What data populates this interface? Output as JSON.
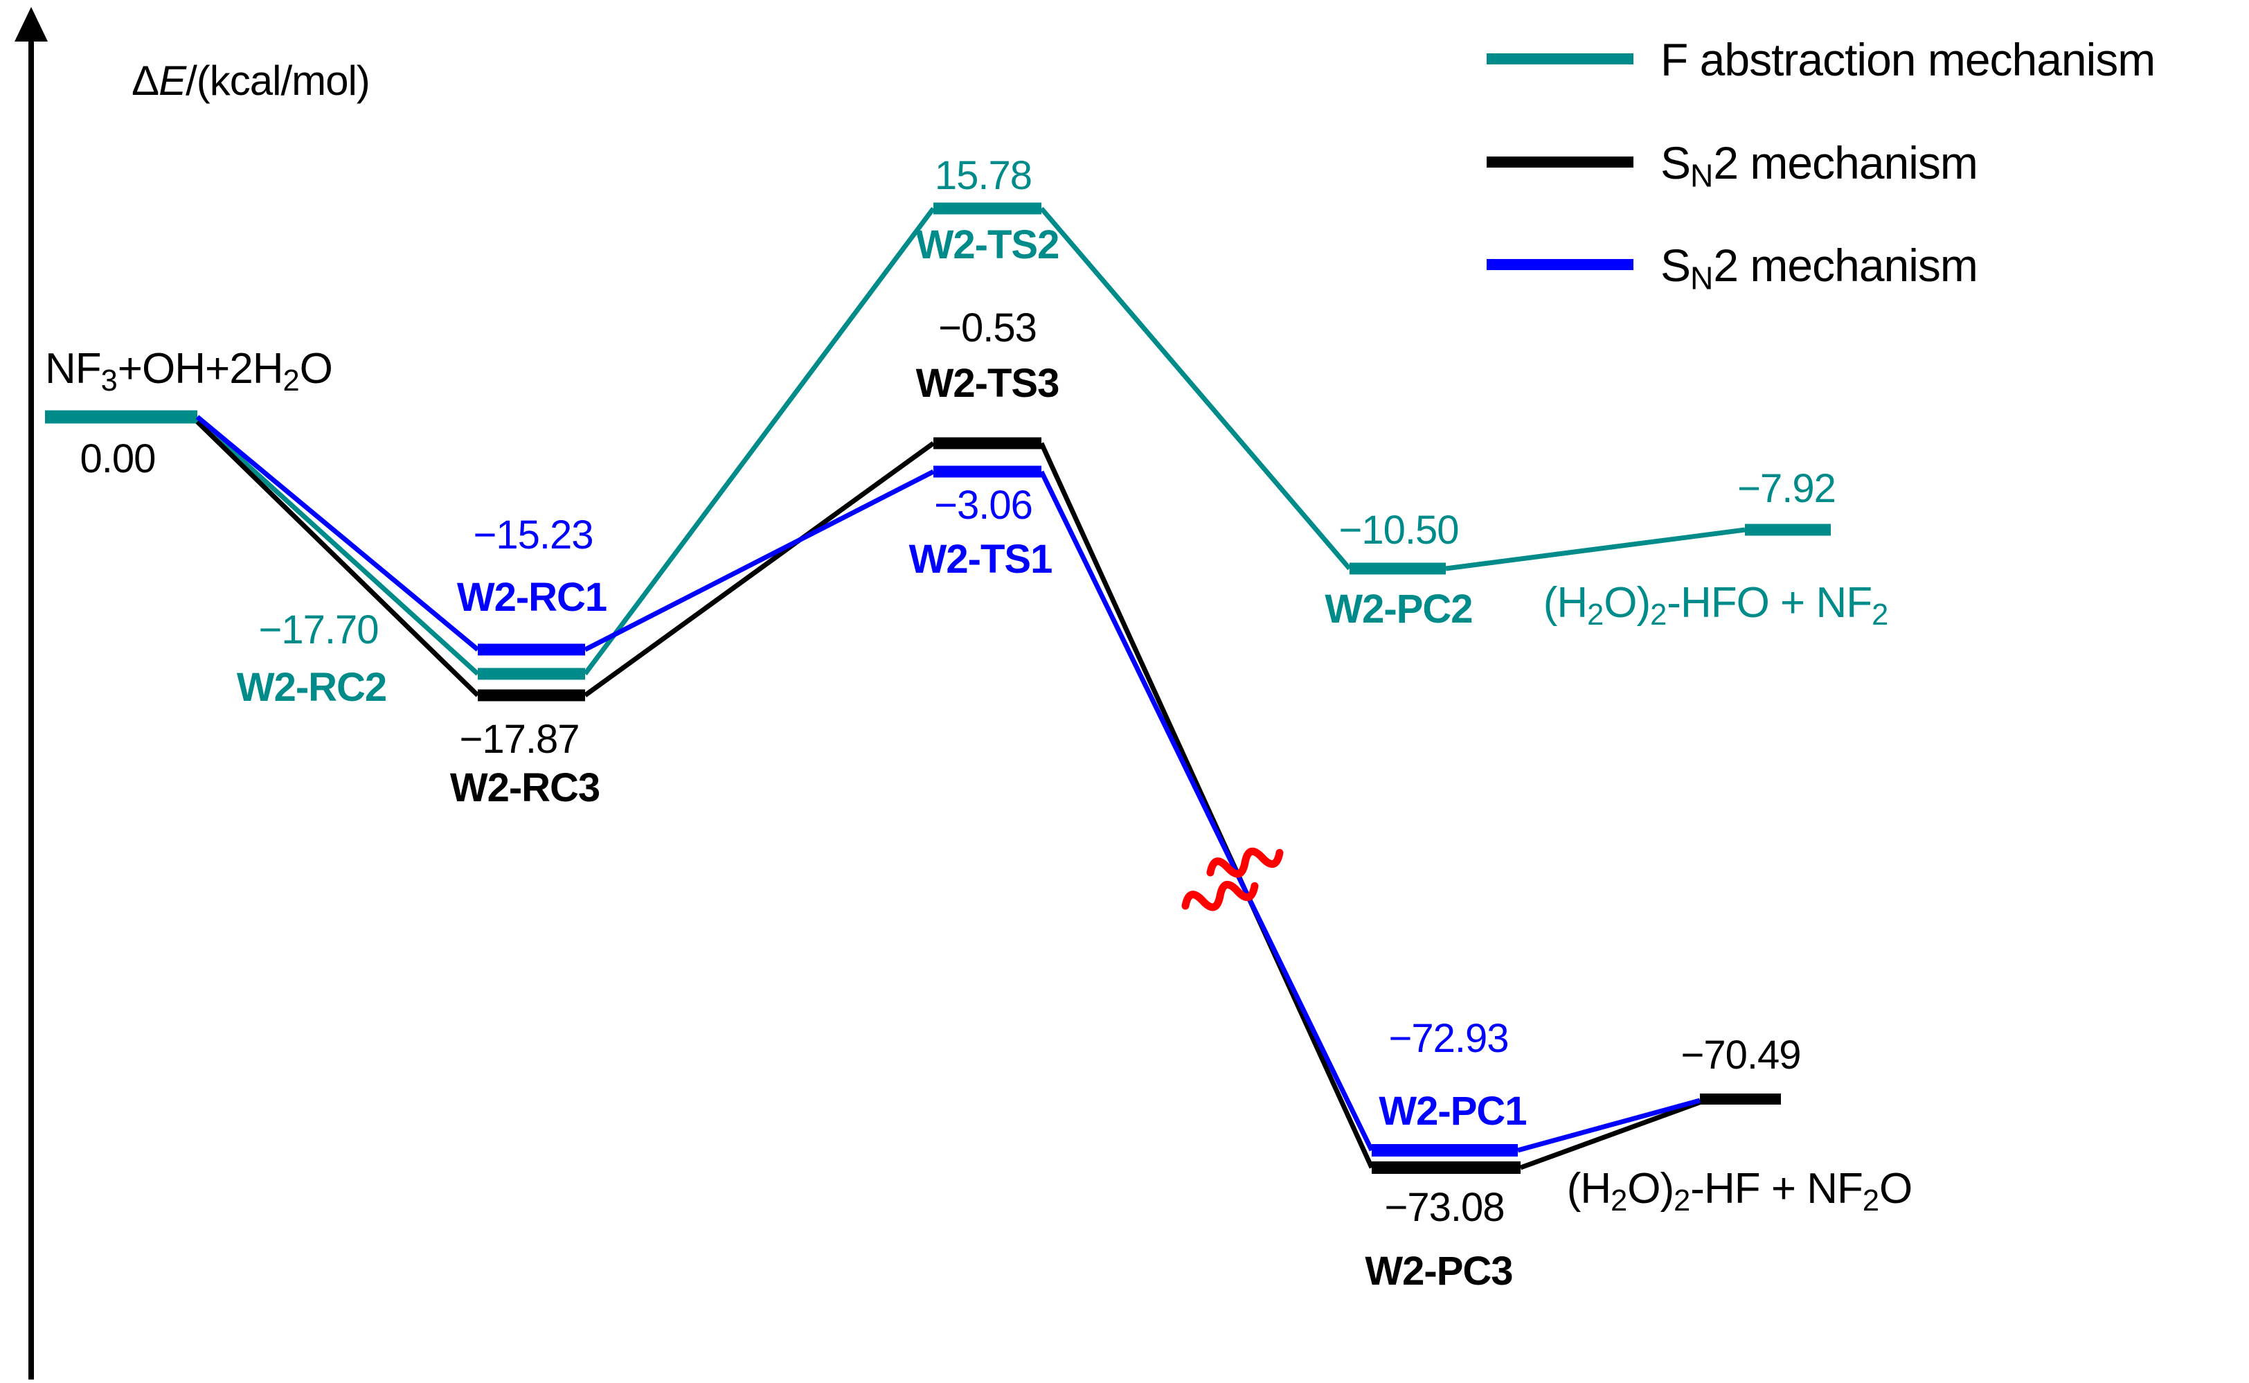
{
  "figure": {
    "axis_label": {
      "text": "ΔE/(kcal/mol)",
      "segments": [
        {
          "t": "Δ"
        },
        {
          "t": "E",
          "i": 1
        },
        {
          "t": "/(kcal/mol)"
        }
      ]
    },
    "legend": {
      "items": [
        {
          "label": "F abstraction mechanism",
          "color": "#008B8B",
          "segments": [
            {
              "t": "F abstraction mechanism"
            }
          ]
        },
        {
          "label": "SN2 mechanism",
          "color": "#000000",
          "segments": [
            {
              "t": "S"
            },
            {
              "t": "N",
              "s": 1
            },
            {
              "t": "2 mechanism"
            }
          ]
        },
        {
          "label": "SN2 mechanism",
          "color": "#0000FF",
          "segments": [
            {
              "t": "S"
            },
            {
              "t": "N",
              "s": 1
            },
            {
              "t": "2 mechanism"
            }
          ]
        }
      ]
    },
    "levels": {
      "start": {
        "energy": "0.00",
        "label_segments": [
          {
            "t": "NF"
          },
          {
            "t": "3",
            "s": 1
          },
          {
            "t": "+OH+2H"
          },
          {
            "t": "2",
            "s": 1
          },
          {
            "t": "O"
          }
        ]
      },
      "rc1": {
        "energy": "−15.23",
        "name": "W2-RC1"
      },
      "rc2": {
        "energy": "−17.70",
        "name": "W2-RC2"
      },
      "rc3": {
        "energy": "−17.87",
        "name": "W2-RC3"
      },
      "ts2": {
        "energy": "15.78",
        "name": "W2-TS2"
      },
      "ts3": {
        "energy": "−0.53",
        "name": "W2-TS3"
      },
      "ts1": {
        "energy": "−3.06",
        "name": "W2-TS1"
      },
      "pc2": {
        "energy": "−10.50",
        "name": "W2-PC2"
      },
      "pc1": {
        "energy": "−72.93",
        "name": "W2-PC1"
      },
      "pc3": {
        "energy": "−73.08",
        "name": "W2-PC3"
      },
      "product_f": {
        "energy": "−7.92",
        "label_segments": [
          {
            "t": "(H"
          },
          {
            "t": "2",
            "s": 1
          },
          {
            "t": "O)"
          },
          {
            "t": "2",
            "s": 1
          },
          {
            "t": "-HFO + NF"
          },
          {
            "t": "2",
            "s": 1
          }
        ]
      },
      "product_sn2": {
        "energy": "−70.49",
        "label_segments": [
          {
            "t": "(H"
          },
          {
            "t": "2",
            "s": 1
          },
          {
            "t": "O)"
          },
          {
            "t": "2",
            "s": 1
          },
          {
            "t": "-HF + NF"
          },
          {
            "t": "2",
            "s": 1
          },
          {
            "t": "O"
          }
        ]
      }
    }
  },
  "chart_data": {
    "type": "line",
    "subtype": "energy-profile-diagram",
    "title": "",
    "ylabel": "ΔE/(kcal/mol)",
    "unit": "kcal/mol",
    "grid": false,
    "legend_position": "top-right",
    "reference_level": {
      "label": "NF3+OH+2H2O",
      "E": 0.0
    },
    "series": [
      {
        "name": "F abstraction mechanism",
        "color": "#008B8B",
        "points": [
          {
            "label": "NF3+OH+2H2O",
            "E": 0.0
          },
          {
            "label": "W2-RC2",
            "E": -17.7
          },
          {
            "label": "W2-TS2",
            "E": 15.78
          },
          {
            "label": "W2-PC2",
            "E": -10.5
          },
          {
            "label": "(H2O)2-HFO + NF2",
            "E": -7.92
          }
        ]
      },
      {
        "name": "SN2 mechanism",
        "color": "#000000",
        "points": [
          {
            "label": "NF3+OH+2H2O",
            "E": 0.0
          },
          {
            "label": "W2-RC3",
            "E": -17.87
          },
          {
            "label": "W2-TS3",
            "E": -0.53
          },
          {
            "label": "W2-PC3",
            "E": -73.08
          },
          {
            "label": "(H2O)2-HF + NF2O",
            "E": -70.49
          }
        ]
      },
      {
        "name": "SN2 mechanism",
        "color": "#0000FF",
        "points": [
          {
            "label": "NF3+OH+2H2O",
            "E": 0.0
          },
          {
            "label": "W2-RC1",
            "E": -15.23
          },
          {
            "label": "W2-TS1",
            "E": -3.06
          },
          {
            "label": "W2-PC1",
            "E": -72.93
          },
          {
            "label": "(H2O)2-HF + NF2O",
            "E": -70.49
          }
        ]
      }
    ],
    "annotations": [
      {
        "type": "axis-break-squiggle",
        "color": "#FF0000",
        "location": "on descending lines between W2-TS1/W2-TS3 and W2-PC1/W2-PC3"
      }
    ]
  }
}
